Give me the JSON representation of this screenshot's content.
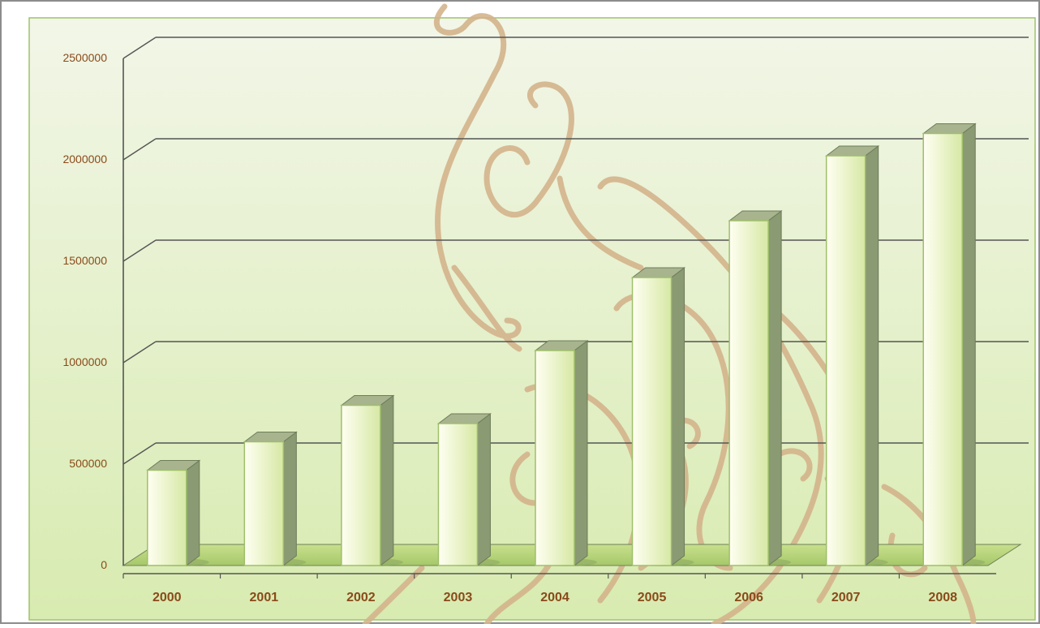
{
  "chart_data": {
    "type": "bar",
    "categories": [
      "2000",
      "2001",
      "2002",
      "2003",
      "2004",
      "2005",
      "2006",
      "2007",
      "2008"
    ],
    "values": [
      470000,
      610000,
      790000,
      700000,
      1060000,
      1420000,
      1700000,
      2020000,
      2130000
    ],
    "yticks": [
      "0",
      "500000",
      "1000000",
      "1500000",
      "2000000",
      "2500000"
    ],
    "ylim": [
      0,
      2500000
    ],
    "grid": true,
    "legend": "none",
    "style": "3d-column"
  },
  "colors": {
    "background_top": "#f2f6e8",
    "background_bottom": "#d8ebb0",
    "frame_border": "#9ec46a",
    "bar_front_light": "#fffff2",
    "bar_front_dark": "#d6e8a4",
    "bar_side": "#8a9a72",
    "bar_top": "#a8b48e",
    "label_color": "#8a4a1a",
    "gridline": "#555555",
    "watermark": "#d4b48c"
  }
}
